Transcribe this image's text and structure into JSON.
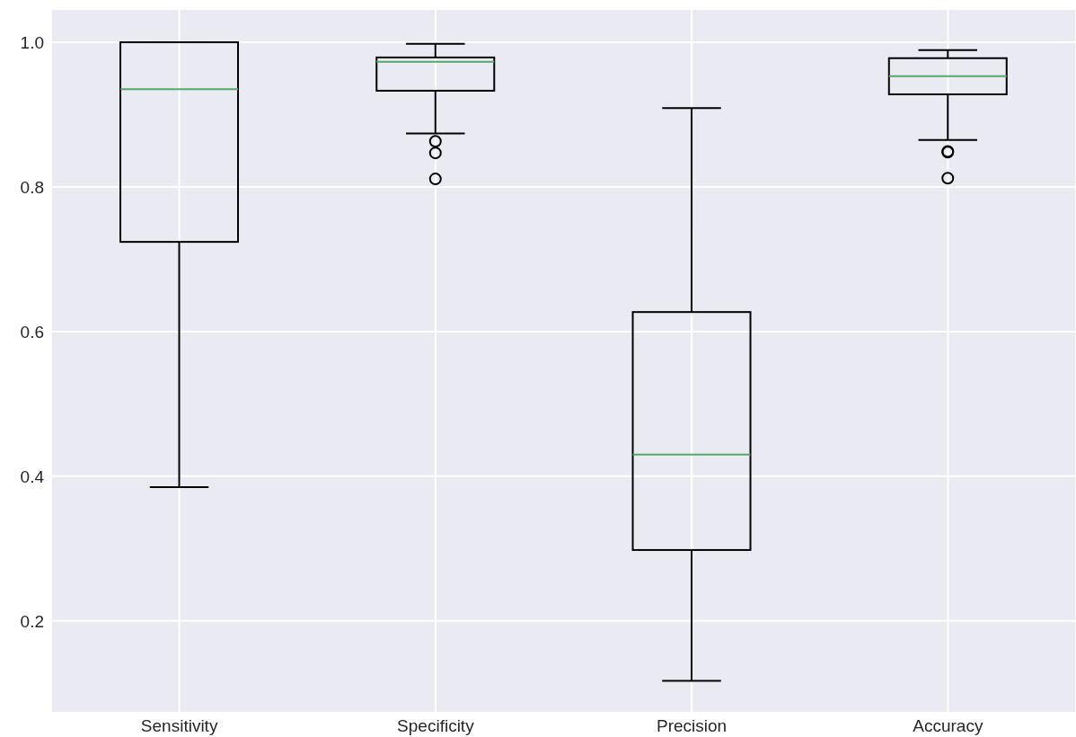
{
  "chart_data": {
    "type": "box",
    "categories": [
      "Sensitivity",
      "Specificity",
      "Precision",
      "Accuracy"
    ],
    "boxes": [
      {
        "low": 0.385,
        "q1": 0.724,
        "median": 0.935,
        "q3": 1.0,
        "high": 1.0
      },
      {
        "low": 0.874,
        "q1": 0.933,
        "median": 0.973,
        "q3": 0.979,
        "high": 0.998,
        "outliers": [
          0.863,
          0.847,
          0.811
        ]
      },
      {
        "low": 0.117,
        "q1": 0.298,
        "median": 0.43,
        "q3": 0.627,
        "high": 0.909
      },
      {
        "low": 0.865,
        "q1": 0.928,
        "median": 0.953,
        "q3": 0.978,
        "high": 0.989,
        "outliers": [
          0.849,
          0.848,
          0.812
        ]
      }
    ],
    "ylim": [
      0.073,
      1.046
    ],
    "yticks": [
      0.2,
      0.4,
      0.6,
      0.8,
      {
        "value": 1,
        "label": "1.0"
      }
    ],
    "grid": true,
    "marker": "circle"
  }
}
